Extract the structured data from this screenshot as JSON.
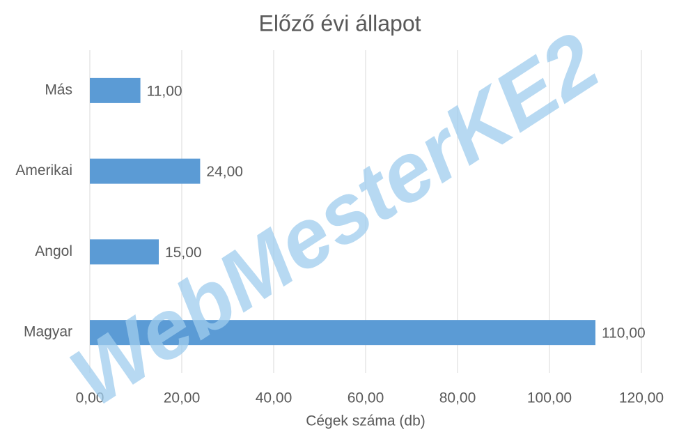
{
  "chart_data": {
    "type": "bar",
    "orientation": "horizontal",
    "title": "Előző évi állapot",
    "x_label": "Cégek száma (db)",
    "categories": [
      "Más",
      "Amerikai",
      "Angol",
      "Magyar"
    ],
    "values": [
      11,
      24,
      15,
      110
    ],
    "value_labels": [
      "11,00",
      "24,00",
      "15,00",
      "110,00"
    ],
    "color": "#5b9bd5",
    "xlim": [
      0,
      120
    ],
    "xticks": [
      {
        "value": 0,
        "label": "0,00"
      },
      {
        "value": 20,
        "label": "20,00"
      },
      {
        "value": 40,
        "label": "40,00"
      },
      {
        "value": 60,
        "label": "60,00"
      },
      {
        "value": 80,
        "label": "80,00"
      },
      {
        "value": 100,
        "label": "100,00"
      },
      {
        "value": 120,
        "label": "120,00"
      }
    ],
    "grid": true,
    "watermark": "WebMesterKE2"
  }
}
